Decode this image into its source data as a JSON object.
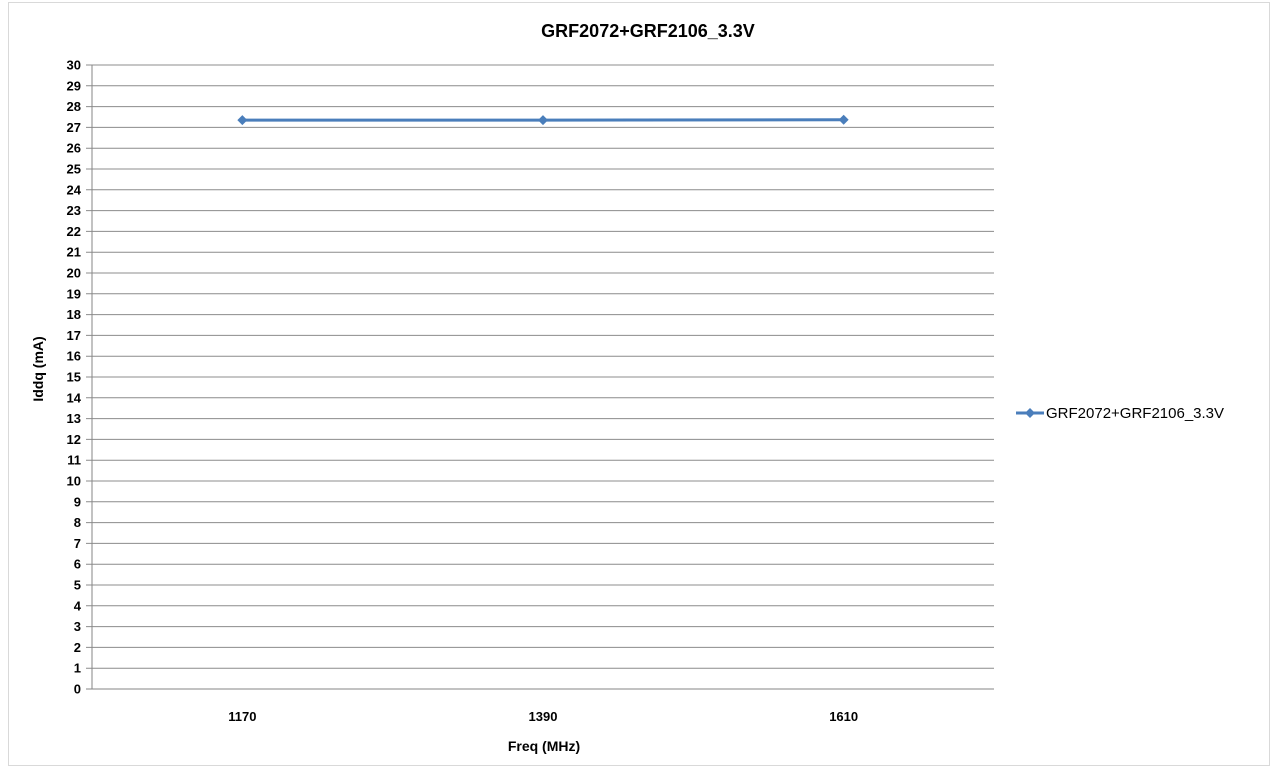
{
  "chart_data": {
    "type": "line",
    "title": "GRF2072+GRF2106_3.3V",
    "xlabel": "Freq (MHz)",
    "ylabel": "Iddq (mA)",
    "categories": [
      "1170",
      "1390",
      "1610"
    ],
    "ylim": [
      0,
      30
    ],
    "y_ticks": [
      "0",
      "1",
      "2",
      "3",
      "4",
      "5",
      "6",
      "7",
      "8",
      "9",
      "10",
      "11",
      "12",
      "13",
      "14",
      "15",
      "16",
      "17",
      "18",
      "19",
      "20",
      "21",
      "22",
      "23",
      "24",
      "25",
      "26",
      "27",
      "28",
      "29",
      "30"
    ],
    "grid": true,
    "legend_position": "right",
    "series": [
      {
        "name": "GRF2072+GRF2106_3.3V",
        "values": [
          27.35,
          27.35,
          27.37
        ],
        "color": "#4a7ebb",
        "marker": "diamond"
      }
    ]
  }
}
